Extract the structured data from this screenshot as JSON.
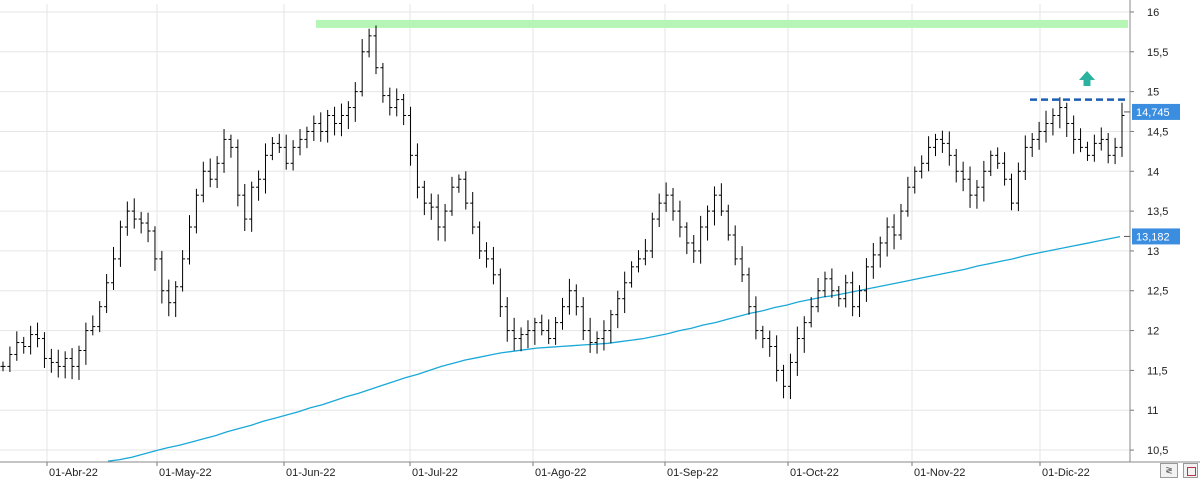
{
  "chart_data": {
    "type": "bar",
    "title": "",
    "xlabel": "",
    "ylabel": "",
    "ylim": [
      10.35,
      16.1
    ],
    "yticks": [
      "16",
      "15,5",
      "15",
      "14,5",
      "14",
      "13,5",
      "13",
      "12,5",
      "12",
      "11,5",
      "11",
      "10,5"
    ],
    "xticks": [
      "01-Abr-22",
      "01-May-22",
      "01-Jun-22",
      "01-Jul-22",
      "01-Ago-22",
      "01-Sep-22",
      "01-Oct-22",
      "01-Nov-22",
      "01-Dic-22"
    ],
    "grid": true,
    "series": [
      {
        "kind": "ohlc",
        "color": "#000000",
        "start": 11.55,
        "closes": [
          11.55,
          11.7,
          11.85,
          11.8,
          11.95,
          11.9,
          11.65,
          11.6,
          11.55,
          11.65,
          11.55,
          11.75,
          12.0,
          12.05,
          12.3,
          12.6,
          12.9,
          13.3,
          13.5,
          13.4,
          13.35,
          13.25,
          12.9,
          12.5,
          12.35,
          12.55,
          12.9,
          13.3,
          13.7,
          14.0,
          13.9,
          14.1,
          14.4,
          14.3,
          13.7,
          13.4,
          13.8,
          13.9,
          14.2,
          14.35,
          14.3,
          14.1,
          14.3,
          14.4,
          14.5,
          14.6,
          14.5,
          14.7,
          14.6,
          14.7,
          14.8,
          15.0,
          15.5,
          15.7,
          15.3,
          14.95,
          14.8,
          14.9,
          14.7,
          14.2,
          13.8,
          13.6,
          13.55,
          13.3,
          13.5,
          13.8,
          13.9,
          13.6,
          13.3,
          13.0,
          12.9,
          12.7,
          12.3,
          12.0,
          11.9,
          11.95,
          12.0,
          12.1,
          12.0,
          11.9,
          12.1,
          12.3,
          12.5,
          12.3,
          12.0,
          11.85,
          11.9,
          12.0,
          12.2,
          12.4,
          12.6,
          12.8,
          12.9,
          13.0,
          13.4,
          13.6,
          13.7,
          13.5,
          13.3,
          13.1,
          13.0,
          13.3,
          13.5,
          13.7,
          13.5,
          13.2,
          12.9,
          12.7,
          12.3,
          12.0,
          11.9,
          11.8,
          11.5,
          11.3,
          11.6,
          11.9,
          12.1,
          12.3,
          12.5,
          12.65,
          12.5,
          12.4,
          12.6,
          12.3,
          12.5,
          12.8,
          12.95,
          13.1,
          13.3,
          13.2,
          13.5,
          13.8,
          14.0,
          14.1,
          14.3,
          14.4,
          14.35,
          14.2,
          14.0,
          13.9,
          13.7,
          13.8,
          14.0,
          14.2,
          14.1,
          13.9,
          13.6,
          14.0,
          14.3,
          14.4,
          14.5,
          14.6,
          14.7,
          14.8,
          14.6,
          14.4,
          14.3,
          14.2,
          14.35,
          14.4,
          14.2,
          14.3,
          14.7
        ]
      },
      {
        "kind": "moving-average",
        "color": "#1aa8d8",
        "values": [
          10.36,
          10.38,
          10.41,
          10.45,
          10.49,
          10.53,
          10.56,
          10.6,
          10.64,
          10.68,
          10.73,
          10.77,
          10.81,
          10.86,
          10.9,
          10.94,
          10.98,
          11.03,
          11.07,
          11.12,
          11.17,
          11.21,
          11.26,
          11.31,
          11.36,
          11.41,
          11.45,
          11.5,
          11.55,
          11.59,
          11.63,
          11.66,
          11.69,
          11.72,
          11.74,
          11.76,
          11.78,
          11.79,
          11.8,
          11.81,
          11.82,
          11.83,
          11.84,
          11.86,
          11.88,
          11.9,
          11.93,
          11.96,
          12.0,
          12.03,
          12.07,
          12.1,
          12.14,
          12.18,
          12.22,
          12.25,
          12.29,
          12.32,
          12.36,
          12.39,
          12.42,
          12.44,
          12.47,
          12.5,
          12.53,
          12.56,
          12.59,
          12.62,
          12.65,
          12.68,
          12.71,
          12.74,
          12.77,
          12.81,
          12.84,
          12.87,
          12.9,
          12.94,
          12.97,
          13.0,
          13.03,
          13.06,
          13.09,
          13.12,
          13.15,
          13.18
        ]
      }
    ],
    "annotations": [
      {
        "kind": "band",
        "color": "#b5f5b5",
        "from_x": "01-Jun-22",
        "y": 15.85
      },
      {
        "kind": "dashed-line",
        "color": "#1a5fb4",
        "from_x": "01-Dic-22",
        "y": 14.9
      },
      {
        "kind": "arrow-up",
        "color": "#2bb3a0"
      }
    ],
    "price_tags": [
      {
        "label": "14,745",
        "value": 14.745,
        "color": "#3b8de0"
      },
      {
        "label": "13,182",
        "value": 13.182,
        "color": "#3b8de0"
      }
    ]
  }
}
